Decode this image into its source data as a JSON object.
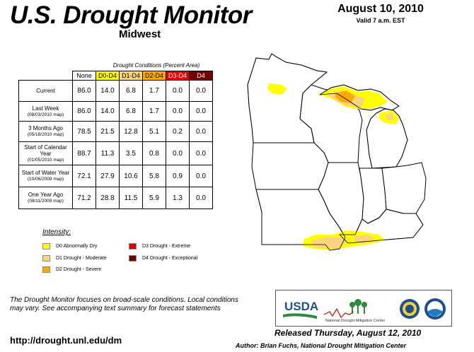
{
  "header": {
    "title": "U.S. Drought Monitor",
    "region": "Midwest",
    "date": "August 10, 2010",
    "valid": "Valid 7 a.m. EST"
  },
  "table": {
    "caption": "Drought Conditions (Percent Area)",
    "columns": [
      "None",
      "D0-D4",
      "D1-D4",
      "D2-D4",
      "D3-D4",
      "D4"
    ],
    "column_colors": [
      "#ffffff",
      "#ffff00",
      "#fcd37f",
      "#ffaa00",
      "#e60000",
      "#730000"
    ],
    "column_text_colors": [
      "#000000",
      "#000000",
      "#000000",
      "#000000",
      "#ffffff",
      "#ffffff"
    ],
    "rows": [
      {
        "label": "Current",
        "sublabel": "",
        "values": [
          "86.0",
          "14.0",
          "6.8",
          "1.7",
          "0.0",
          "0.0"
        ]
      },
      {
        "label": "Last Week",
        "sublabel": "(08/03/2010 map)",
        "values": [
          "86.0",
          "14.0",
          "6.8",
          "1.7",
          "0.0",
          "0.0"
        ]
      },
      {
        "label": "3 Months Ago",
        "sublabel": "(05/18/2010 map)",
        "values": [
          "78.5",
          "21.5",
          "12.8",
          "5.1",
          "0.2",
          "0.0"
        ]
      },
      {
        "label": "Start of Calendar Year",
        "sublabel": "(01/05/2010 map)",
        "values": [
          "88.7",
          "11.3",
          "3.5",
          "0.8",
          "0.0",
          "0.0"
        ]
      },
      {
        "label": "Start of Water Year",
        "sublabel": "(10/06/2009 map)",
        "values": [
          "72.1",
          "27.9",
          "10.6",
          "5.8",
          "0.9",
          "0.0"
        ]
      },
      {
        "label": "One Year Ago",
        "sublabel": "(08/11/2009 map)",
        "values": [
          "71.2",
          "28.8",
          "11.5",
          "5.9",
          "1.3",
          "0.0"
        ]
      }
    ]
  },
  "legend": {
    "title": "Intensity:",
    "items": [
      {
        "label": "D0 Abnormally Dry",
        "color": "#ffff00"
      },
      {
        "label": "D1 Drought - Moderate",
        "color": "#fcd37f"
      },
      {
        "label": "D2 Drought - Severe",
        "color": "#ffaa00"
      },
      {
        "label": "D3 Drought - Extreme",
        "color": "#e60000"
      },
      {
        "label": "D4 Drought - Exceptional",
        "color": "#730000"
      }
    ]
  },
  "footer": {
    "note": "The Drought Monitor focuses on broad-scale conditions. Local conditions may vary. See accompanying text summary for forecast statements",
    "url": "http://drought.unl.edu/dm",
    "released": "Released Thursday, August 12, 2010",
    "author": "Author: Brian Fuchs, National Drought Mitigation Center"
  },
  "logos": {
    "usda": "USDA",
    "ndmc": "National Drought Mitigation Center"
  }
}
